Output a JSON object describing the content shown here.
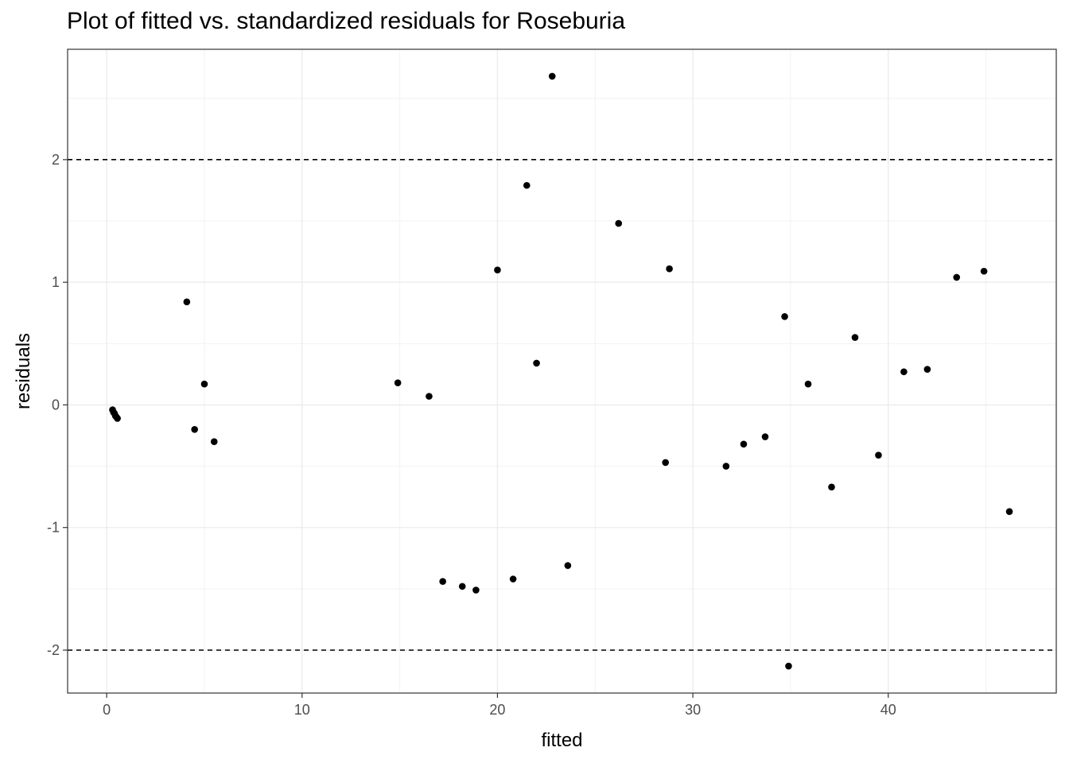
{
  "chart_data": {
    "type": "scatter",
    "title": "Plot of fitted vs. standardized residuals for Roseburia",
    "xlabel": "fitted",
    "ylabel": "residuals",
    "xlim": [
      -2,
      48.6
    ],
    "ylim": [
      -2.35,
      2.9
    ],
    "x_ticks": [
      0,
      10,
      20,
      30,
      40
    ],
    "y_ticks": [
      -2,
      -1,
      0,
      1,
      2
    ],
    "x_tick_labels": [
      "0",
      "10",
      "20",
      "30",
      "40"
    ],
    "y_tick_labels": [
      "-2",
      "-1",
      "0",
      "1",
      "2"
    ],
    "reference_lines": [
      2,
      -2
    ],
    "grid": true,
    "points": [
      {
        "x": 0.3,
        "y": -0.04
      },
      {
        "x": 0.35,
        "y": -0.06
      },
      {
        "x": 0.4,
        "y": -0.07
      },
      {
        "x": 0.45,
        "y": -0.09
      },
      {
        "x": 0.5,
        "y": -0.1
      },
      {
        "x": 0.55,
        "y": -0.11
      },
      {
        "x": 4.1,
        "y": 0.84
      },
      {
        "x": 4.5,
        "y": -0.2
      },
      {
        "x": 5.0,
        "y": 0.17
      },
      {
        "x": 5.5,
        "y": -0.3
      },
      {
        "x": 14.9,
        "y": 0.18
      },
      {
        "x": 16.5,
        "y": 0.07
      },
      {
        "x": 17.2,
        "y": -1.44
      },
      {
        "x": 18.2,
        "y": -1.48
      },
      {
        "x": 18.9,
        "y": -1.51
      },
      {
        "x": 20.0,
        "y": 1.1
      },
      {
        "x": 20.8,
        "y": -1.42
      },
      {
        "x": 21.5,
        "y": 1.79
      },
      {
        "x": 22.0,
        "y": 0.34
      },
      {
        "x": 22.8,
        "y": 2.68
      },
      {
        "x": 23.6,
        "y": -1.31
      },
      {
        "x": 26.2,
        "y": 1.48
      },
      {
        "x": 28.6,
        "y": -0.47
      },
      {
        "x": 28.8,
        "y": 1.11
      },
      {
        "x": 31.7,
        "y": -0.5
      },
      {
        "x": 32.6,
        "y": -0.32
      },
      {
        "x": 33.7,
        "y": -0.26
      },
      {
        "x": 34.7,
        "y": 0.72
      },
      {
        "x": 34.9,
        "y": -2.13
      },
      {
        "x": 35.9,
        "y": 0.17
      },
      {
        "x": 37.1,
        "y": -0.67
      },
      {
        "x": 38.3,
        "y": 0.55
      },
      {
        "x": 39.5,
        "y": -0.41
      },
      {
        "x": 40.8,
        "y": 0.27
      },
      {
        "x": 42.0,
        "y": 0.29
      },
      {
        "x": 43.5,
        "y": 1.04
      },
      {
        "x": 44.9,
        "y": 1.09
      },
      {
        "x": 46.2,
        "y": -0.87
      }
    ]
  }
}
